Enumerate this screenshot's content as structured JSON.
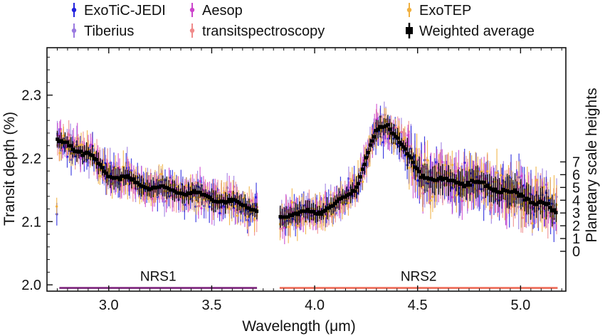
{
  "chart_data": {
    "type": "scatter",
    "title": "",
    "xlabel": "Wavelength (μm)",
    "ylabel": "Transit depth (%)",
    "y2label": "Planetary scale heights",
    "xlim": [
      2.7,
      5.22
    ],
    "ylim": [
      1.99,
      2.375
    ],
    "x_ticks": [
      3.0,
      3.5,
      4.0,
      4.5,
      5.0
    ],
    "x_tick_labels": [
      "3.0",
      "3.5",
      "4.0",
      "4.5",
      "5.0"
    ],
    "y_ticks": [
      2.0,
      2.1,
      2.2,
      2.3
    ],
    "y_tick_labels": [
      "2.0",
      "2.1",
      "2.2",
      "2.3"
    ],
    "y2_ticks": [
      0,
      1,
      2,
      3,
      4,
      5,
      6,
      7
    ],
    "y2_tick_labels": [
      "0",
      "1",
      "2",
      "3",
      "4",
      "5",
      "6",
      "7"
    ],
    "y2_reference": {
      "scale_height_0_depth": 2.053,
      "depth_per_scale_height": 0.0202
    },
    "grid": false,
    "legend_position": "top",
    "series": [
      {
        "name": "ExoTiC-JEDI",
        "color": "#2222dd",
        "marker": "dot-errorbar",
        "jitter": 0.012
      },
      {
        "name": "Aesop",
        "color": "#cc44cc",
        "marker": "dot-errorbar",
        "jitter": 0.012
      },
      {
        "name": "ExoTEP",
        "color": "#f0b040",
        "marker": "dot-errorbar",
        "jitter": 0.012
      },
      {
        "name": "Tiberius",
        "color": "#9a7ae0",
        "marker": "dot-errorbar",
        "jitter": 0.012
      },
      {
        "name": "transitspectroscopy",
        "color": "#f08a8a",
        "marker": "dot-errorbar",
        "jitter": 0.012
      },
      {
        "name": "Weighted average",
        "color": "#000000",
        "marker": "square-errorbar",
        "jitter": 0.0
      }
    ],
    "trend": {
      "x": [
        2.75,
        2.8,
        2.9,
        3.0,
        3.2,
        3.4,
        3.6,
        3.72,
        3.83,
        4.0,
        4.1,
        4.2,
        4.25,
        4.3,
        4.35,
        4.4,
        4.45,
        4.5,
        4.6,
        4.8,
        5.0,
        5.1,
        5.18
      ],
      "y": [
        2.225,
        2.222,
        2.205,
        2.175,
        2.155,
        2.145,
        2.13,
        2.12,
        2.11,
        2.115,
        2.125,
        2.155,
        2.2,
        2.24,
        2.255,
        2.235,
        2.205,
        2.18,
        2.165,
        2.16,
        2.14,
        2.13,
        2.11
      ],
      "gap": [
        3.72,
        3.83
      ]
    },
    "regions": [
      {
        "label": "NRS1",
        "x_start": 2.76,
        "x_end": 3.72,
        "y": 1.995,
        "color": "#8a3a8a"
      },
      {
        "label": "NRS2",
        "x_start": 3.83,
        "x_end": 5.18,
        "y": 1.995,
        "color": "#f07a68"
      }
    ]
  }
}
